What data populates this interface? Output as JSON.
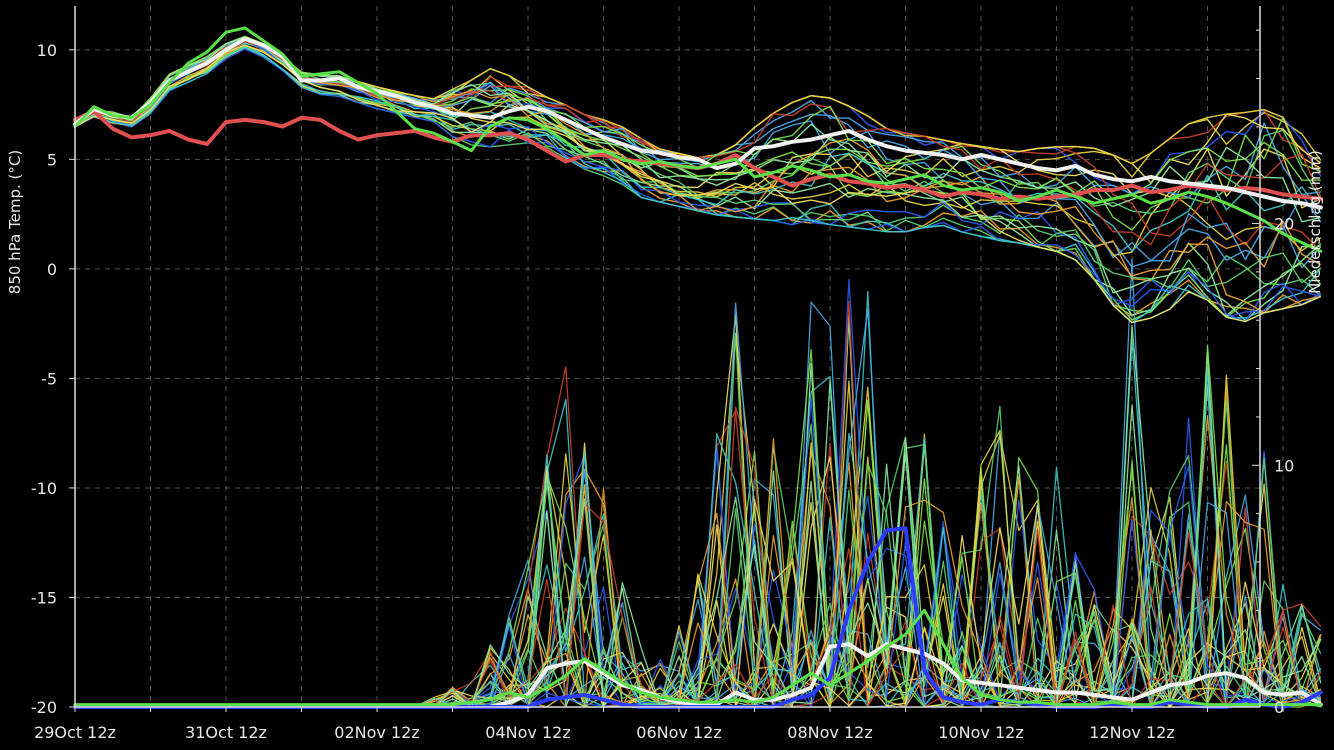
{
  "chart_data": {
    "type": "line",
    "title": "",
    "ylabel": "850 hPa Temp. (°C)",
    "y2label": "Niederschlag (mm)",
    "ylim": [
      -20,
      12
    ],
    "y2lim": [
      0,
      29
    ],
    "yticks": [
      10,
      5,
      0,
      -5,
      -10,
      -15,
      -20
    ],
    "y2ticks": [
      20,
      10,
      0
    ],
    "grid": true,
    "x_tick_labels": [
      "29Oct 12z",
      "31Oct 12z",
      "02Nov 12z",
      "04Nov 12z",
      "06Nov 12z",
      "08Nov 12z",
      "10Nov 12z",
      "12Nov 12z"
    ],
    "x_step_hours": 6,
    "highlight_series": [
      {
        "name": "",
        "axis": "temperature",
        "color": "#e05050",
        "width": 4,
        "values": [
          6.8,
          7.2,
          6.4,
          6.0,
          6.1,
          6.3,
          5.9,
          5.7,
          6.7,
          6.8,
          6.7,
          6.5,
          6.9,
          6.8,
          6.3,
          5.9,
          6.1,
          6.2,
          6.3,
          6.0,
          5.8,
          6.1,
          6.1,
          6.2,
          5.9,
          5.4,
          4.9,
          5.2,
          5.2,
          5.0,
          4.9,
          4.8,
          4.7,
          4.6,
          4.8,
          5.2,
          4.6,
          4.2,
          3.8,
          4.1,
          4.3,
          4.0,
          3.9,
          3.7,
          3.8,
          3.6,
          3.3,
          3.5,
          3.4,
          3.2,
          3.3,
          3.2,
          3.3,
          3.4,
          3.6,
          3.6,
          3.8,
          3.5,
          3.6,
          3.8,
          3.7,
          3.6,
          3.7,
          3.6,
          3.4,
          3.3,
          3.2
        ]
      },
      {
        "name": "",
        "axis": "temperature",
        "color": "#f2f2f2",
        "width": 4,
        "values": [
          6.6,
          7.3,
          7.0,
          6.9,
          7.6,
          8.6,
          9.0,
          9.4,
          10.0,
          10.5,
          10.2,
          9.7,
          8.6,
          8.6,
          8.7,
          8.3,
          8.1,
          7.9,
          7.6,
          7.4,
          7.1,
          7.0,
          6.9,
          7.2,
          7.4,
          7.2,
          6.8,
          6.4,
          6.0,
          5.7,
          5.4,
          5.3,
          5.1,
          5.0,
          4.6,
          4.8,
          5.5,
          5.6,
          5.8,
          5.9,
          6.1,
          6.3,
          5.9,
          5.6,
          5.4,
          5.3,
          5.2,
          5.0,
          5.2,
          5.0,
          4.8,
          4.6,
          4.5,
          4.7,
          4.3,
          4.1,
          4.0,
          4.2,
          4.0,
          3.9,
          3.8,
          3.7,
          3.5,
          3.3,
          3.1,
          3.0,
          2.8
        ]
      },
      {
        "name": "",
        "axis": "temperature",
        "color": "#5be04a",
        "width": 3,
        "values": [
          6.5,
          7.4,
          7.0,
          6.9,
          7.5,
          8.5,
          9.4,
          9.9,
          10.8,
          11.0,
          10.4,
          9.8,
          8.8,
          8.9,
          9.0,
          8.5,
          8.0,
          7.2,
          6.4,
          6.2,
          5.8,
          5.4,
          6.5,
          6.9,
          6.8,
          6.4,
          5.8,
          5.2,
          5.4,
          5.0,
          4.8,
          4.9,
          4.7,
          4.6,
          4.8,
          5.0,
          4.2,
          4.4,
          4.7,
          4.5,
          4.2,
          4.3,
          4.0,
          3.9,
          4.1,
          4.3,
          3.8,
          3.6,
          3.7,
          3.5,
          3.1,
          3.3,
          3.6,
          3.3,
          3.0,
          3.2,
          3.4,
          3.0,
          3.2,
          3.5,
          3.3,
          3.0,
          2.6,
          2.2,
          1.6,
          1.2,
          0.8
        ]
      },
      {
        "name": "",
        "axis": "precipitation",
        "color": "#f2f2f2",
        "width": 4,
        "values": [
          0,
          0,
          0,
          0,
          0,
          0,
          0,
          0,
          0,
          0,
          0,
          0,
          0,
          0,
          0,
          0,
          0,
          0,
          0,
          0,
          0,
          0,
          0,
          0.2,
          0.5,
          1.6,
          1.8,
          1.9,
          1.4,
          0.9,
          0.7,
          0.4,
          0.2,
          0.1,
          0.1,
          0.6,
          0.3,
          0.3,
          0.5,
          0.8,
          2.5,
          2.6,
          2.1,
          2.6,
          2.4,
          2.2,
          1.8,
          1.1,
          1.0,
          0.9,
          0.8,
          0.7,
          0.6,
          0.6,
          0.5,
          0.4,
          0.3,
          0.6,
          0.9,
          1.0,
          1.3,
          1.4,
          1.2,
          0.6,
          0.5,
          0.6,
          0.1
        ]
      },
      {
        "name": "",
        "axis": "precipitation",
        "color": "#2b3cff",
        "width": 4,
        "values": [
          0,
          0,
          0,
          0,
          0,
          0,
          0,
          0,
          0,
          0,
          0,
          0,
          0,
          0,
          0,
          0,
          0,
          0,
          0,
          0,
          0,
          0,
          0,
          0,
          0,
          0.3,
          0.4,
          0.5,
          0.3,
          0.1,
          0,
          0,
          0,
          0,
          0,
          0,
          0,
          0,
          0.3,
          0.5,
          1.2,
          4.0,
          6.0,
          7.3,
          7.4,
          1.5,
          0.4,
          0.2,
          0.1,
          0.3,
          0.2,
          0.1,
          0,
          0,
          0,
          0.1,
          0,
          0,
          0.2,
          0.1,
          0,
          0,
          0.3,
          0.1,
          0,
          0.2,
          0.6
        ]
      },
      {
        "name": "",
        "axis": "precipitation",
        "color": "#5be04a",
        "width": 3,
        "values": [
          0.1,
          0.1,
          0.1,
          0.1,
          0.1,
          0.1,
          0.1,
          0.1,
          0.1,
          0.1,
          0.1,
          0.1,
          0.1,
          0.1,
          0.1,
          0.1,
          0.1,
          0.1,
          0.1,
          0.1,
          0.1,
          0.2,
          0.3,
          0.6,
          0.4,
          0.8,
          1.3,
          2.0,
          1.5,
          1.0,
          0.6,
          0.4,
          0.3,
          0.2,
          0.2,
          0.3,
          0.2,
          0.4,
          0.9,
          1.4,
          0.9,
          1.4,
          1.9,
          2.5,
          3.0,
          4.0,
          2.6,
          1.2,
          0.5,
          0.3,
          0.2,
          0.2,
          0.1,
          0.1,
          0.1,
          0.2,
          0.1,
          0.1,
          0.3,
          0.2,
          0.1,
          0.1,
          0.1,
          0.1,
          0.1,
          0.1,
          0.1
        ]
      }
    ],
    "ensemble": {
      "members": 30,
      "colors": [
        "#e6d23c",
        "#5bd06b",
        "#4aa8e8",
        "#2a5cf0",
        "#c8402a",
        "#e8a030",
        "#7de04e",
        "#8fe8a0",
        "#3fc8c8",
        "#f0e060"
      ],
      "temperature_envelope": {
        "lower": [
          6.3,
          6.8,
          6.4,
          6.3,
          6.8,
          7.8,
          8.2,
          8.6,
          9.3,
          9.8,
          9.4,
          8.8,
          8.0,
          7.6,
          7.5,
          7.2,
          6.9,
          6.7,
          6.5,
          6.3,
          6.0,
          5.6,
          5.5,
          5.6,
          5.7,
          5.5,
          5.0,
          4.5,
          4.2,
          3.8,
          3.2,
          3.0,
          2.8,
          2.6,
          2.4,
          2.3,
          2.2,
          2.1,
          1.9,
          1.8,
          1.9,
          1.8,
          1.7,
          1.6,
          1.6,
          1.8,
          1.9,
          1.6,
          1.4,
          1.2,
          1.1,
          0.9,
          0.7,
          0.3,
          -0.6,
          -1.8,
          -2.6,
          -2.4,
          -2.0,
          -1.2,
          -1.6,
          -2.4,
          -2.6,
          -2.2,
          -2.0,
          -1.8,
          -1.4
        ],
        "upper": [
          7.2,
          7.6,
          7.8,
          7.4,
          8.6,
          9.8,
          10.2,
          10.6,
          11.1,
          11.3,
          11.0,
          10.4,
          9.8,
          9.9,
          9.9,
          9.7,
          9.5,
          9.3,
          9.1,
          9.0,
          9.2,
          10.0,
          10.8,
          10.3,
          9.5,
          8.9,
          8.6,
          8.2,
          8.0,
          7.7,
          7.2,
          6.6,
          6.4,
          6.2,
          6.5,
          7.2,
          8.4,
          9.4,
          10.2,
          10.7,
          10.5,
          10.0,
          9.4,
          8.6,
          8.3,
          8.0,
          7.7,
          7.6,
          7.5,
          7.4,
          7.3,
          7.6,
          7.8,
          8.0,
          8.3,
          8.4,
          8.2,
          8.8,
          9.6,
          10.2,
          10.8,
          11.4,
          11.6,
          11.6,
          11.0,
          9.8,
          8.4
        ]
      },
      "precipitation_peak_mm": [
        0,
        0,
        0,
        0,
        0,
        0,
        0,
        0,
        0,
        0,
        0,
        0,
        0,
        0,
        0,
        0,
        0,
        0,
        0,
        0.4,
        0.9,
        1.4,
        2.6,
        4.0,
        6.4,
        11.2,
        14.6,
        11.0,
        9.2,
        5.6,
        2.6,
        2.0,
        3.4,
        6.2,
        11.4,
        16.8,
        10.8,
        11.2,
        8.0,
        17.6,
        18.6,
        18.0,
        17.2,
        11.0,
        14.4,
        11.4,
        8.2,
        7.4,
        10.6,
        12.6,
        10.8,
        9.0,
        10.6,
        7.4,
        5.0,
        4.6,
        19.8,
        9.2,
        9.4,
        12.0,
        15.2,
        13.8,
        9.0,
        10.8,
        5.2,
        4.6,
        3.4
      ]
    }
  }
}
